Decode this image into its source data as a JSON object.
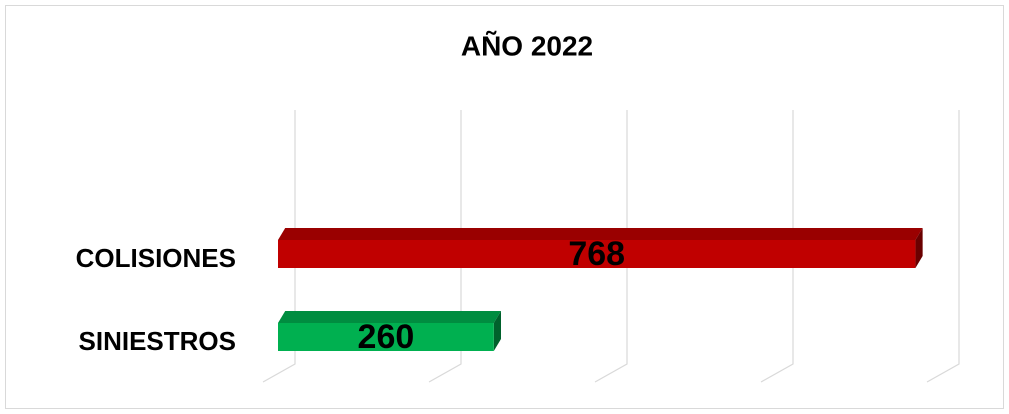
{
  "chart_data": {
    "type": "bar3d_horizontal",
    "title": "AÑO 2022",
    "categories": [
      "COLISIONES",
      "SINIESTROS"
    ],
    "values": [
      768,
      260
    ],
    "colors": [
      "#c00000",
      "#00b050"
    ],
    "xlim": [
      0,
      800
    ],
    "xticks": [
      0,
      200,
      400,
      600,
      800
    ],
    "grid": true
  }
}
